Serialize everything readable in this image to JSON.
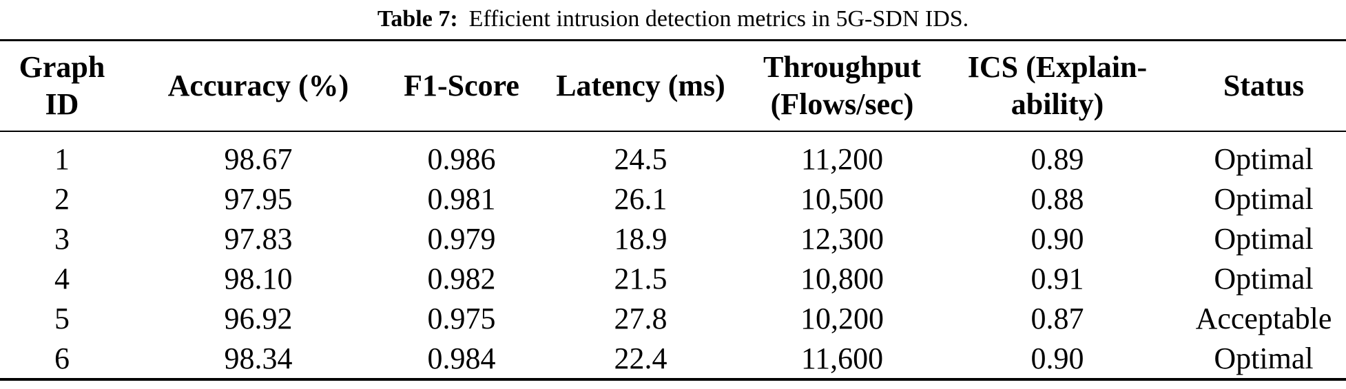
{
  "title": {
    "label": "Table 7:",
    "caption": "Efficient intrusion detection metrics in 5G-SDN IDS."
  },
  "table": {
    "columns": [
      {
        "key": "graph_id",
        "label": "Graph ID"
      },
      {
        "key": "accuracy",
        "label": "Accuracy (%)"
      },
      {
        "key": "f1_score",
        "label": "F1-Score"
      },
      {
        "key": "latency",
        "label": "Latency (ms)"
      },
      {
        "key": "throughput",
        "label": "Throughput\n(Flows/sec)"
      },
      {
        "key": "ics",
        "label": "ICS (Explain-\nability)"
      },
      {
        "key": "status",
        "label": "Status"
      }
    ],
    "rows": [
      [
        "1",
        "98.67",
        "0.986",
        "24.5",
        "11,200",
        "0.89",
        "Optimal"
      ],
      [
        "2",
        "97.95",
        "0.981",
        "26.1",
        "10,500",
        "0.88",
        "Optimal"
      ],
      [
        "3",
        "97.83",
        "0.979",
        "18.9",
        "12,300",
        "0.90",
        "Optimal"
      ],
      [
        "4",
        "98.10",
        "0.982",
        "21.5",
        "10,800",
        "0.91",
        "Optimal"
      ],
      [
        "5",
        "96.92",
        "0.975",
        "27.8",
        "10,200",
        "0.87",
        "Acceptable"
      ],
      [
        "6",
        "98.34",
        "0.984",
        "22.4",
        "11,600",
        "0.90",
        "Optimal"
      ]
    ],
    "colors": {
      "text": "#000000",
      "background": "#ffffff",
      "rule": "#000000"
    }
  }
}
